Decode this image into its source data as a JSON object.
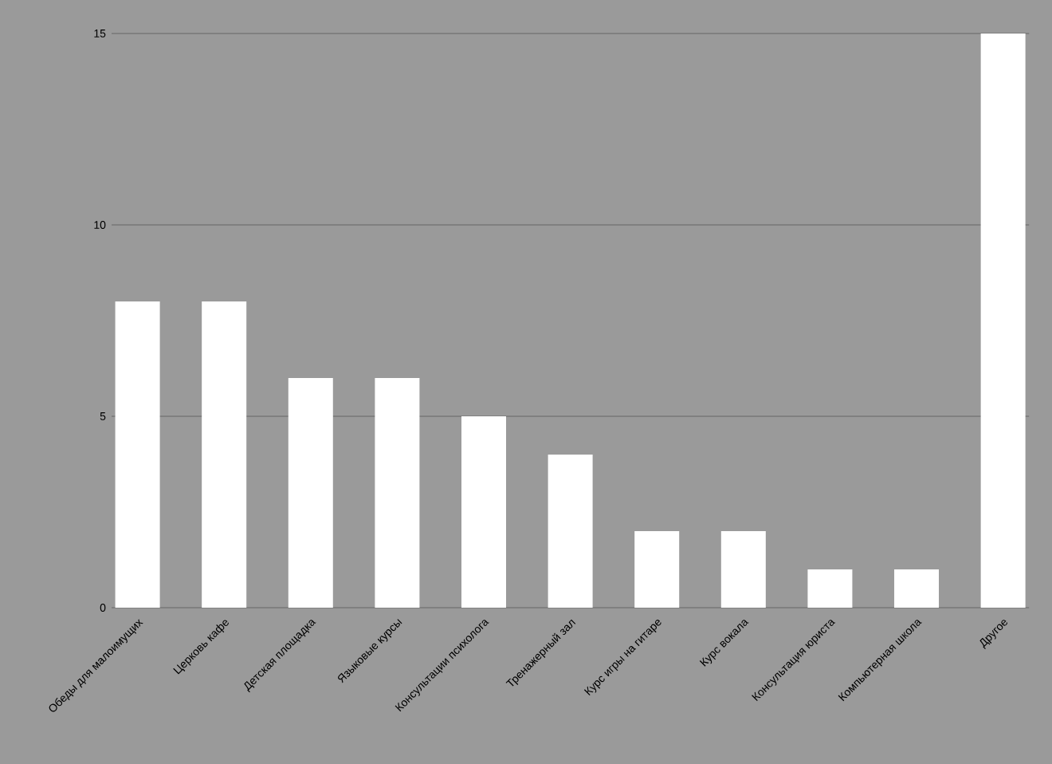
{
  "chart_data": {
    "type": "bar",
    "categories": [
      "Обеды для малоимущих",
      "Церковь кафе",
      "Детская площадка",
      "Языковые курсы",
      "Консультации психолога",
      "Тренажерный зал",
      "Курс игры на гитаре",
      "Курс вокала",
      "Консультация юриста",
      "Компьютерная школа",
      "Другое"
    ],
    "values": [
      8,
      8,
      6,
      6,
      5,
      4,
      2,
      2,
      1,
      1,
      15
    ],
    "color": "#ffffff",
    "ylim": [
      0,
      15
    ],
    "yticks": [
      0,
      5,
      10,
      15
    ],
    "grid": "y"
  }
}
